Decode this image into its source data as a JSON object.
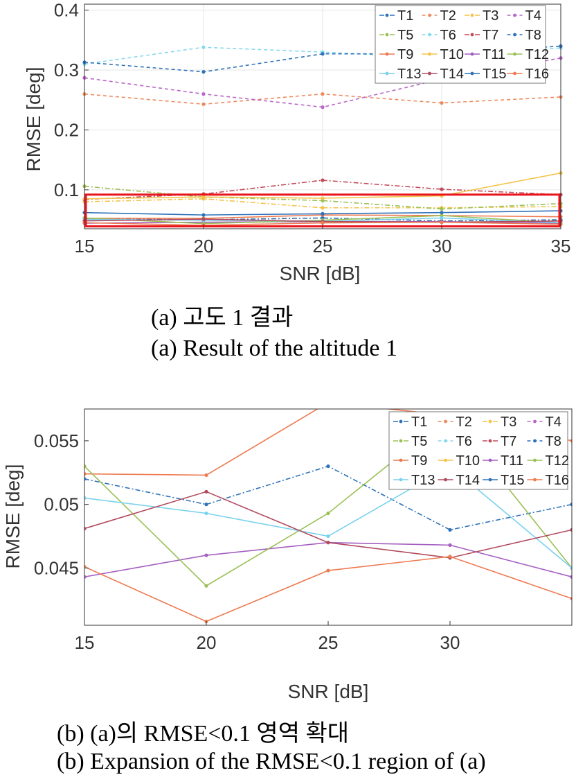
{
  "captions": {
    "a_ko": "(a)  고도 1 결과",
    "a_en": "(a) Result of the altitude 1",
    "b_ko": "(b) (a)의 RMSE<0.1 영역 확대",
    "b_en": "(b) Expansion of the RMSE<0.1 region of (a)"
  },
  "chart_data": [
    {
      "type": "line",
      "title": "",
      "xlabel": "SNR [dB]",
      "ylabel": "RMSE [deg]",
      "xlim": [
        15,
        35
      ],
      "ylim": [
        0.035,
        0.41
      ],
      "xticks": [
        "15",
        "20",
        "25",
        "30",
        "35"
      ],
      "yticks": [
        "0.1",
        "0.2",
        "0.3",
        "0.4"
      ],
      "grid": true,
      "legend_position": "top-right",
      "legend_columns": 4,
      "highlight_box": {
        "ylim": [
          0.039,
          0.092
        ],
        "color": "#e8141c"
      },
      "x": [
        15,
        20,
        25,
        30,
        35
      ],
      "series": [
        {
          "name": "T1",
          "color": "#2f72b8",
          "style": "dashdot",
          "values": [
            0.052,
            0.05,
            0.053,
            0.048,
            0.05
          ]
        },
        {
          "name": "T2",
          "color": "#ee8a5e",
          "style": "dashed",
          "values": [
            0.26,
            0.243,
            0.26,
            0.245,
            0.255
          ]
        },
        {
          "name": "T3",
          "color": "#f3c34a",
          "style": "dashdot",
          "values": [
            0.08,
            0.085,
            0.07,
            0.07,
            0.072
          ]
        },
        {
          "name": "T4",
          "color": "#b866c8",
          "style": "dashed",
          "values": [
            0.287,
            0.26,
            0.238,
            0.285,
            0.32
          ]
        },
        {
          "name": "T5",
          "color": "#9bc055",
          "style": "dashdot",
          "values": [
            0.106,
            0.088,
            0.082,
            0.068,
            0.077
          ]
        },
        {
          "name": "T6",
          "color": "#86d8ee",
          "style": "dashed",
          "values": [
            0.31,
            0.338,
            0.33,
            0.32,
            0.337
          ]
        },
        {
          "name": "T7",
          "color": "#c34a58",
          "style": "dashdot",
          "values": [
            0.084,
            0.093,
            0.116,
            0.101,
            0.092
          ]
        },
        {
          "name": "T8",
          "color": "#2f72b8",
          "style": "dashed",
          "values": [
            0.313,
            0.297,
            0.327,
            0.327,
            0.34
          ]
        },
        {
          "name": "T9",
          "color": "#ee7a50",
          "style": "solid",
          "values": [
            0.0524,
            0.0523,
            0.058,
            0.057,
            0.055
          ]
        },
        {
          "name": "T10",
          "color": "#f3c34a",
          "style": "solid",
          "values": [
            0.085,
            0.088,
            0.086,
            0.09,
            0.128
          ]
        },
        {
          "name": "T11",
          "color": "#a45ec0",
          "style": "solid",
          "values": [
            0.0443,
            0.046,
            0.047,
            0.0468,
            0.0443
          ]
        },
        {
          "name": "T12",
          "color": "#9bc055",
          "style": "solid",
          "values": [
            0.053,
            0.0436,
            0.0493,
            0.057,
            0.045
          ]
        },
        {
          "name": "T13",
          "color": "#79d1ee",
          "style": "solid",
          "values": [
            0.0505,
            0.0493,
            0.0475,
            0.053,
            0.045
          ]
        },
        {
          "name": "T14",
          "color": "#b14a5e",
          "style": "solid",
          "values": [
            0.0481,
            0.051,
            0.047,
            0.0458,
            0.048
          ]
        },
        {
          "name": "T15",
          "color": "#2f72b8",
          "style": "solid",
          "values": [
            0.062,
            0.058,
            0.06,
            0.062,
            0.065
          ]
        },
        {
          "name": "T16",
          "color": "#ee7a50",
          "style": "solid",
          "values": [
            0.0451,
            0.0408,
            0.0448,
            0.0459,
            0.0426
          ]
        }
      ]
    },
    {
      "type": "line",
      "title": "",
      "xlabel": "SNR [dB]",
      "ylabel": "RMSE [deg]",
      "xlim": [
        15,
        35
      ],
      "ylim": [
        0.0405,
        0.0575
      ],
      "xticks": [
        "15",
        "20",
        "25",
        "30"
      ],
      "yticks": [
        "0.045",
        "0.05",
        "0.055"
      ],
      "grid": false,
      "legend_position": "top-right",
      "legend_columns": 4,
      "x": [
        15,
        20,
        25,
        30,
        35
      ],
      "series_ref": "same as chart (a)"
    }
  ]
}
